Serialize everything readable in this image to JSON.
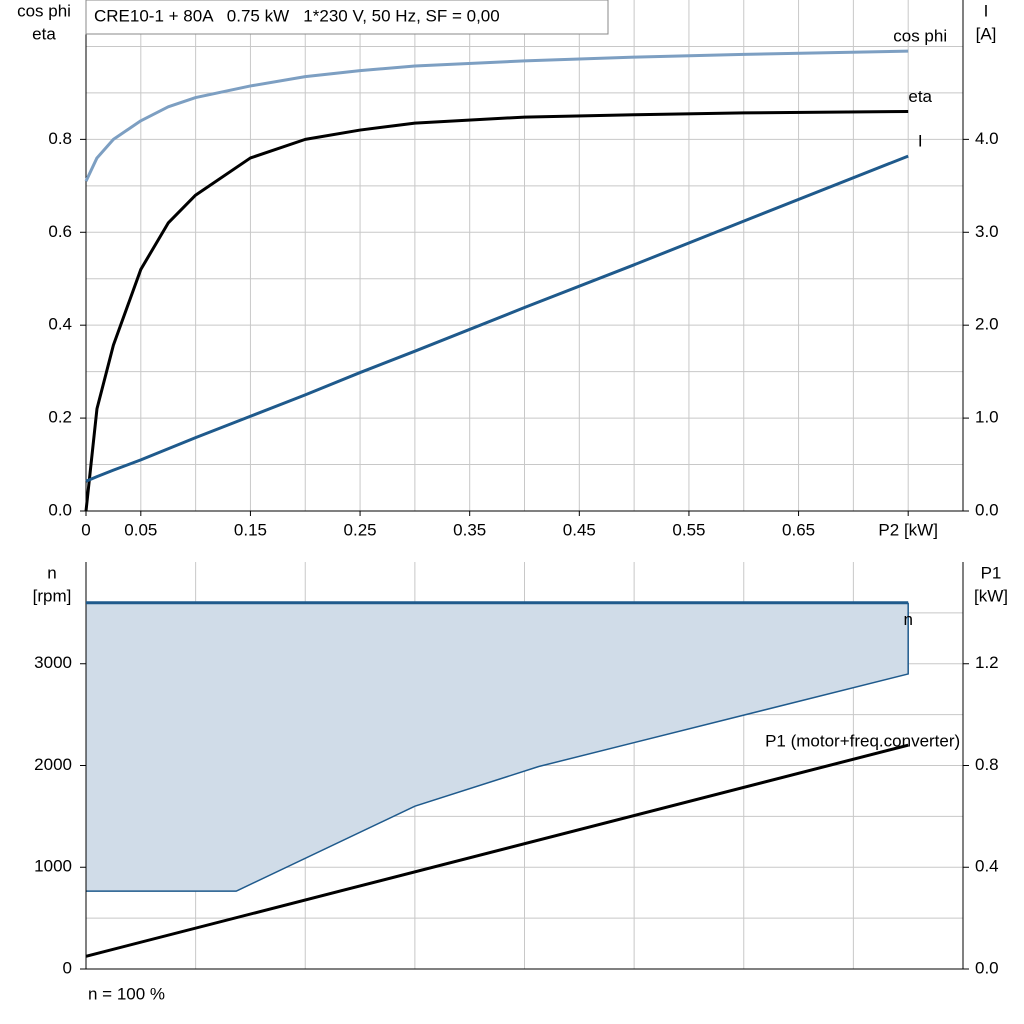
{
  "chart_data": [
    {
      "type": "line",
      "title": "CRE10-1 + 80A   0.75 kW   1*230 V, 50 Hz, SF = 0,00",
      "ylabel": [
        "cos phi",
        "eta"
      ],
      "y2label": [
        "I",
        "[A]"
      ],
      "x": [
        0,
        0.01,
        0.025,
        0.05,
        0.075,
        0.1,
        0.15,
        0.2,
        0.25,
        0.3,
        0.4,
        0.5,
        0.6,
        0.75
      ],
      "xlim": [
        0,
        0.8
      ],
      "xticks": [
        0,
        0.05,
        0.15,
        0.25,
        0.35,
        0.45,
        0.55,
        0.65,
        {
          "value": 0.75,
          "label": "P2 [kW]"
        }
      ],
      "xgrid": [
        0.05,
        0.1,
        0.15,
        0.2,
        0.25,
        0.3,
        0.35,
        0.4,
        0.45,
        0.5,
        0.55,
        0.6,
        0.65,
        0.7,
        0.75
      ],
      "ylim": [
        0,
        1.1
      ],
      "yticks": [
        {
          "value": 0,
          "label": "0.0"
        },
        0.2,
        0.4,
        0.6,
        0.8
      ],
      "ygrid": [
        0.1,
        0.2,
        0.3,
        0.4,
        0.5,
        0.6,
        0.7,
        0.8,
        0.9,
        1.0
      ],
      "y2lim": [
        0,
        5.5
      ],
      "y2ticks": [
        {
          "value": 0,
          "label": "0.0"
        },
        {
          "value": 1,
          "label": "1.0"
        },
        {
          "value": 2,
          "label": "2.0"
        },
        {
          "value": 3,
          "label": "3.0"
        },
        {
          "value": 4,
          "label": "4.0"
        }
      ],
      "series": [
        {
          "name": "cos phi",
          "color": "#7d9fc2",
          "values": [
            0.71,
            0.76,
            0.8,
            0.84,
            0.87,
            0.89,
            0.915,
            0.935,
            0.948,
            0.958,
            0.969,
            0.977,
            0.983,
            0.99
          ]
        },
        {
          "name": "eta",
          "color": "#000000",
          "values": [
            0,
            0.22,
            0.357,
            0.52,
            0.62,
            0.68,
            0.76,
            0.8,
            0.82,
            0.835,
            0.848,
            0.853,
            0.857,
            0.86
          ]
        },
        {
          "name": "I",
          "color": "#1f5a8c",
          "axis": "y2",
          "values": [
            0.32,
            0.37,
            0.44,
            0.55,
            0.67,
            0.79,
            1.02,
            1.25,
            1.49,
            1.72,
            2.19,
            2.65,
            3.12,
            3.82
          ]
        }
      ]
    },
    {
      "type": "line",
      "ylabel": [
        "n",
        "[rpm]"
      ],
      "y2label": [
        "P1",
        "[kW]"
      ],
      "xlim": [
        0,
        0.8
      ],
      "xgrid": [
        0.1,
        0.2,
        0.3,
        0.4,
        0.5,
        0.6,
        0.7
      ],
      "ylim": [
        0,
        4000
      ],
      "yticks": [
        0,
        1000,
        2000,
        3000
      ],
      "ygrid": [
        500,
        1000,
        1500,
        2000,
        2500,
        3000,
        3500
      ],
      "y2lim": [
        0,
        1.6
      ],
      "y2ticks": [
        {
          "value": 0,
          "label": "0.0"
        },
        {
          "value": 0.4,
          "label": "0.4"
        },
        {
          "value": 0.8,
          "label": "0.8"
        },
        {
          "value": 1.2,
          "label": "1.2"
        }
      ],
      "band": {
        "color": "#d0dce8",
        "x": [
          0,
          0.137,
          0.3,
          0.413,
          0.75
        ],
        "lower": [
          765,
          765,
          1600,
          1990,
          2900
        ]
      },
      "series": [
        {
          "name": "n",
          "color": "#1f5a8c",
          "x": [
            0,
            0.75
          ],
          "values": [
            3600,
            3600
          ]
        },
        {
          "name": "P1 (motor+freq.converter)",
          "color": "#000000",
          "axis": "y2",
          "x": [
            0,
            0.75
          ],
          "values": [
            0.05,
            0.88
          ]
        }
      ],
      "footnote": "n = 100 %"
    }
  ]
}
